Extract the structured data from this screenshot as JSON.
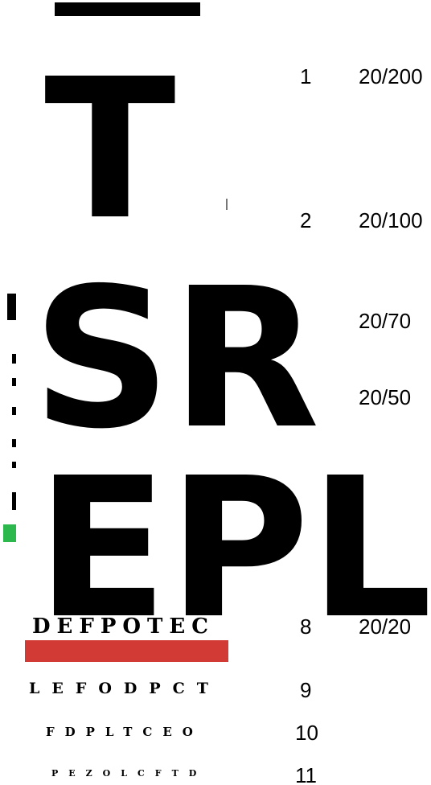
{
  "rows": [
    {
      "letters": "T",
      "number": "1",
      "acuity": "20/200"
    },
    {
      "letters": "",
      "number": "2",
      "acuity": "20/100"
    },
    {
      "letters": "SR",
      "number": "",
      "acuity": "20/70"
    },
    {
      "letters": "",
      "number": "",
      "acuity": "20/50"
    },
    {
      "letters": "",
      "number": "",
      "acuity": ""
    },
    {
      "letters": "",
      "number": "",
      "acuity": ""
    },
    {
      "letters": "EPL",
      "number": "",
      "acuity": ""
    },
    {
      "letters": "DEFPOTEC",
      "number": "8",
      "acuity": "20/20"
    },
    {
      "letters": "LEFODPCT",
      "number": "9",
      "acuity": ""
    },
    {
      "letters": "FDPLTCEO",
      "number": "10",
      "acuity": ""
    },
    {
      "letters": "PEZOLCFTD",
      "number": "11",
      "acuity": ""
    }
  ],
  "colors": {
    "green": "#2db84d",
    "red": "#d13a35"
  }
}
